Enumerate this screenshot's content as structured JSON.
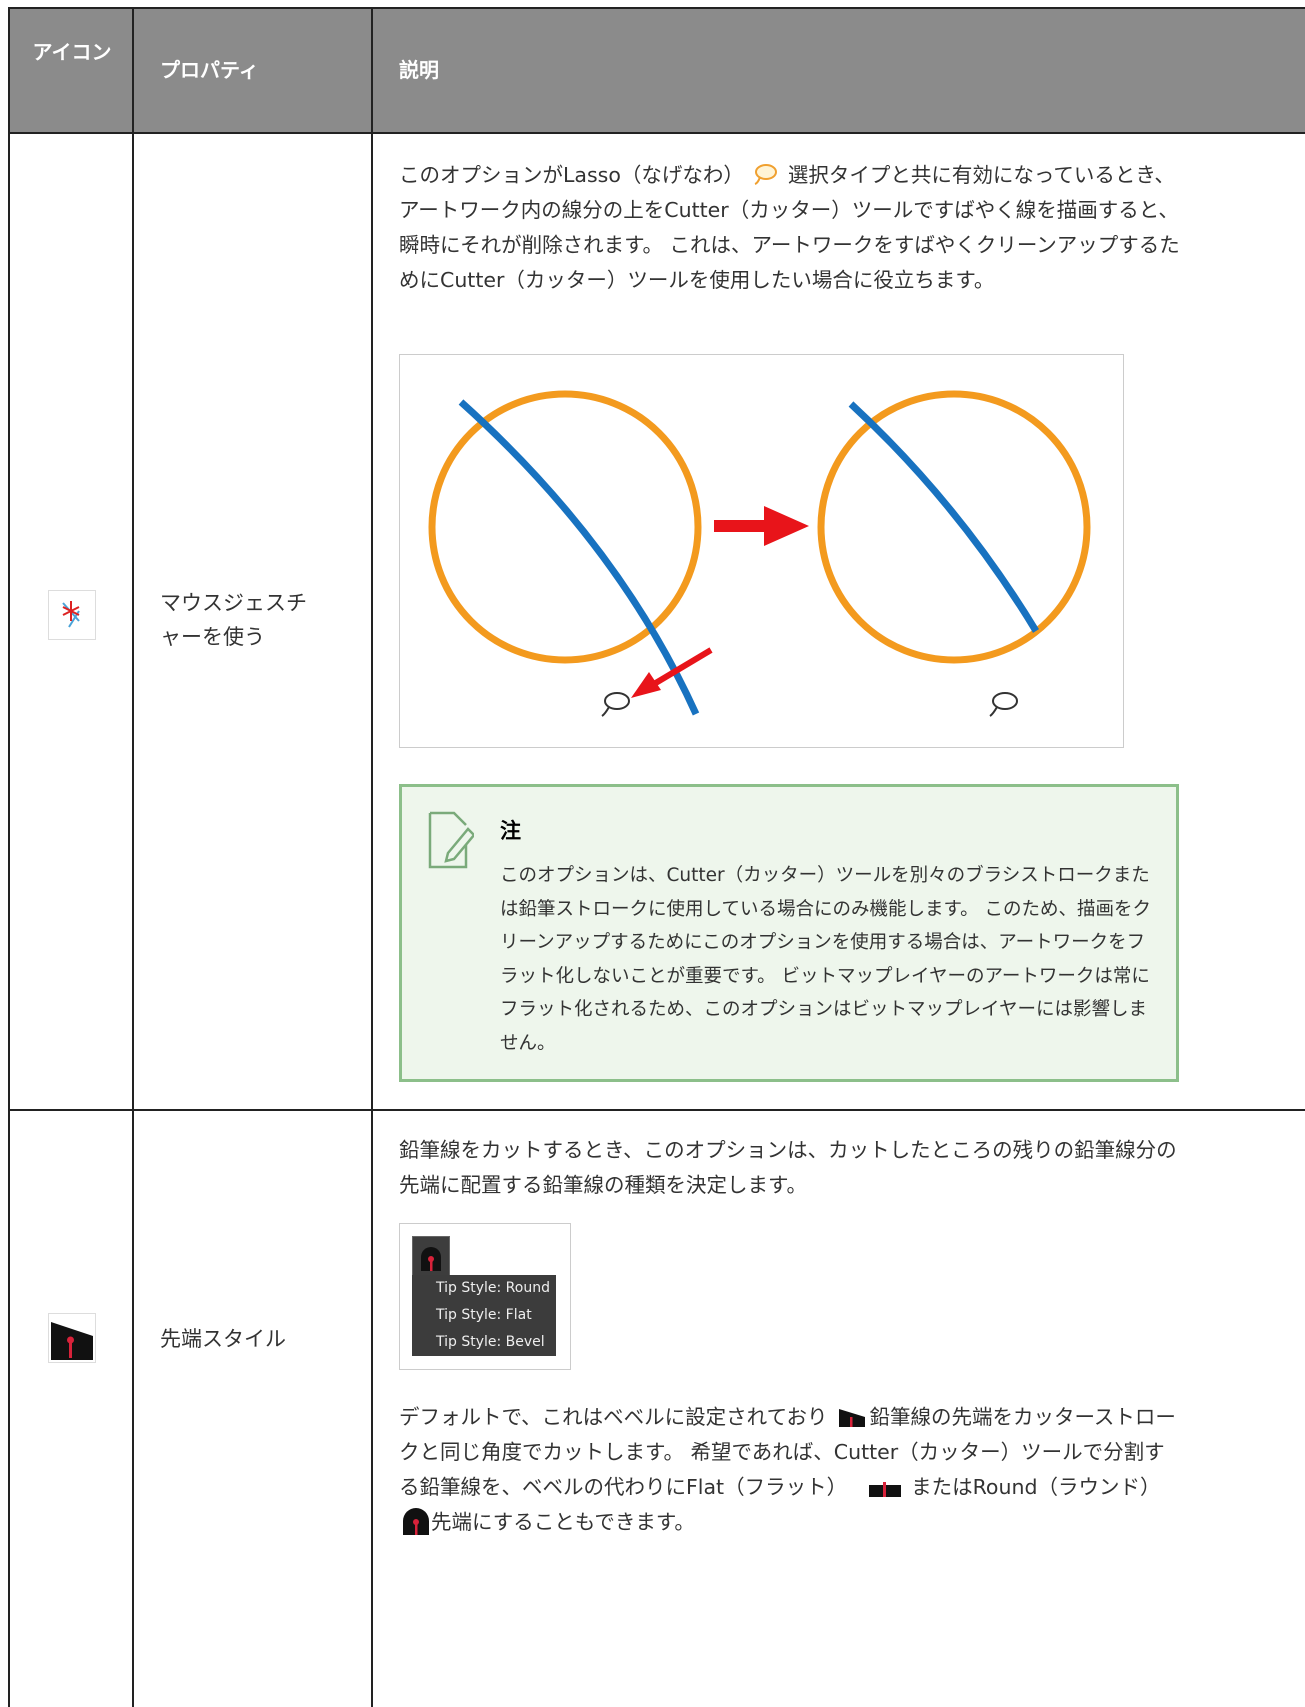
{
  "table": {
    "header": [
      "アイコン",
      "プロパティ",
      "説明"
    ],
    "rows": [
      {
        "property": "マウスジェスチャーを使う",
        "description": [
          "このオプションがLasso（なげなわ）",
          "選択タイプと共に有効になっているとき、アートワーク内の線分の上をCutter（カッター）ツールですばやく線を描画すると、瞬時にそれが削除されます。 これは、アートワークをすばやくクリーンアップするためにCutter（カッター）ツールを使用したい場合に役立ちます。"
        ],
        "note": {
          "title": "注",
          "text": "このオプションは、Cutter（カッター）ツールを別々のブラシストロークまたは鉛筆ストロークに使用している場合にのみ機能します。 このため、描画をクリーンアップするためにこのオプションを使用する場合は、アートワークをフラット化しないことが重要です。 ビットマップレイヤーのアートワークは常にフラット化されるため、このオプションはビットマップレイヤーには影響しません。"
        }
      },
      {
        "property": "先端スタイル",
        "description": "鉛筆線をカットするとき、このオプションは、カットしたところの残りの鉛筆線分の先端に配置する鉛筆線の種類を決定します。",
        "menu": [
          "Tip Style: Round",
          "Tip Style: Flat",
          "Tip Style: Bevel"
        ],
        "description_2": [
          "デフォルトで、これはベベルに設定されており",
          "鉛筆線の先端をカッターストロークと同じ角度でカットします。 希望であれば、Cutter（カッター）ツールで分割する鉛筆線を、ベベルの代わりにFlat（フラット）",
          "またはRound（ラウンド）",
          "先端にすることもできます。"
        ]
      }
    ]
  }
}
